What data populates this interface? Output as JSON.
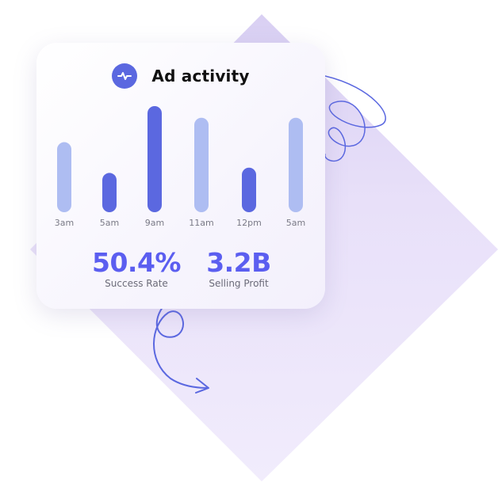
{
  "card": {
    "title": "Ad activity",
    "title_icon": "activity-pulse-icon",
    "stats": [
      {
        "value": "50.4%",
        "label": "Success Rate"
      },
      {
        "value": "3.2B",
        "label": "Selling Profit"
      }
    ]
  },
  "colors": {
    "accent": "#5b68e0",
    "bar_light": "#aebdf2",
    "bar_dark": "#5b68e0",
    "stat_value": "#5b5ef0",
    "diamond": "#ede7fb",
    "doodle": "#5b68e0"
  },
  "chart_data": {
    "type": "bar",
    "title": "Ad activity",
    "categories": [
      "3am",
      "5am",
      "9am",
      "11am",
      "12pm",
      "5am"
    ],
    "values": [
      66,
      37,
      100,
      89,
      42,
      89
    ],
    "highlighted": [
      false,
      true,
      true,
      false,
      true,
      false
    ],
    "ylim": [
      0,
      100
    ],
    "grid": false,
    "legend": "none"
  }
}
